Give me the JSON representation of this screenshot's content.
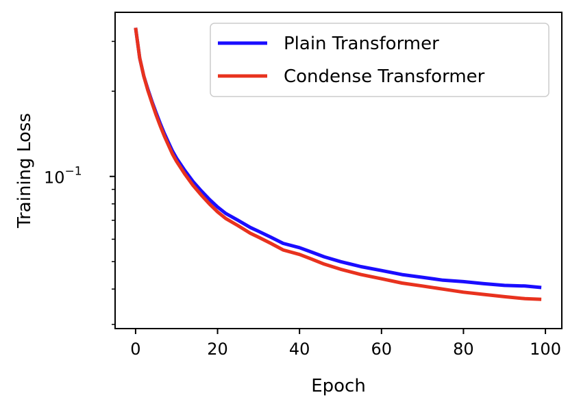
{
  "chart_data": {
    "type": "line",
    "xlabel": "Epoch",
    "ylabel": "Training Loss",
    "yscale": "log",
    "xlim": [
      -5,
      104
    ],
    "ylim": [
      0.029,
      0.38
    ],
    "x_ticks": [
      0,
      20,
      40,
      60,
      80,
      100
    ],
    "x_tick_labels": [
      "0",
      "20",
      "40",
      "60",
      "80",
      "100"
    ],
    "y_major_ticks": [
      0.1
    ],
    "y_major_tick_label": "10",
    "y_major_tick_exp": "−1",
    "y_minor_ticks": [
      0.03,
      0.04,
      0.05,
      0.06,
      0.07,
      0.08,
      0.09,
      0.2,
      0.3
    ],
    "grid": false,
    "legend_position": "top-right",
    "series": [
      {
        "name": "Plain Transformer",
        "color": "#1a0dff",
        "points": [
          [
            0,
            0.335
          ],
          [
            1,
            0.262
          ],
          [
            2,
            0.226
          ],
          [
            3,
            0.203
          ],
          [
            4,
            0.184
          ],
          [
            5,
            0.168
          ],
          [
            6,
            0.154
          ],
          [
            7,
            0.142
          ],
          [
            8,
            0.132
          ],
          [
            9,
            0.123
          ],
          [
            10,
            0.116
          ],
          [
            12,
            0.105
          ],
          [
            14,
            0.096
          ],
          [
            16,
            0.089
          ],
          [
            18,
            0.083
          ],
          [
            20,
            0.078
          ],
          [
            22,
            0.074
          ],
          [
            25,
            0.07
          ],
          [
            28,
            0.066
          ],
          [
            30,
            0.064
          ],
          [
            33,
            0.061
          ],
          [
            36,
            0.058
          ],
          [
            40,
            0.056
          ],
          [
            43,
            0.054
          ],
          [
            46,
            0.052
          ],
          [
            50,
            0.05
          ],
          [
            55,
            0.048
          ],
          [
            60,
            0.0465
          ],
          [
            65,
            0.045
          ],
          [
            70,
            0.044
          ],
          [
            75,
            0.043
          ],
          [
            80,
            0.0425
          ],
          [
            85,
            0.0418
          ],
          [
            90,
            0.0412
          ],
          [
            95,
            0.041
          ],
          [
            99,
            0.0405
          ]
        ]
      },
      {
        "name": "Condense Transformer",
        "color": "#e8321e",
        "points": [
          [
            0,
            0.335
          ],
          [
            1,
            0.262
          ],
          [
            2,
            0.226
          ],
          [
            3,
            0.201
          ],
          [
            4,
            0.182
          ],
          [
            5,
            0.165
          ],
          [
            6,
            0.151
          ],
          [
            7,
            0.139
          ],
          [
            8,
            0.129
          ],
          [
            9,
            0.12
          ],
          [
            10,
            0.113
          ],
          [
            12,
            0.102
          ],
          [
            14,
            0.093
          ],
          [
            16,
            0.086
          ],
          [
            18,
            0.08
          ],
          [
            20,
            0.075
          ],
          [
            22,
            0.071
          ],
          [
            25,
            0.067
          ],
          [
            28,
            0.063
          ],
          [
            30,
            0.061
          ],
          [
            33,
            0.058
          ],
          [
            36,
            0.055
          ],
          [
            40,
            0.053
          ],
          [
            43,
            0.051
          ],
          [
            46,
            0.049
          ],
          [
            50,
            0.047
          ],
          [
            55,
            0.045
          ],
          [
            60,
            0.0435
          ],
          [
            65,
            0.042
          ],
          [
            70,
            0.041
          ],
          [
            75,
            0.04
          ],
          [
            80,
            0.039
          ],
          [
            85,
            0.0383
          ],
          [
            90,
            0.0376
          ],
          [
            95,
            0.037
          ],
          [
            99,
            0.0368
          ]
        ]
      }
    ]
  }
}
